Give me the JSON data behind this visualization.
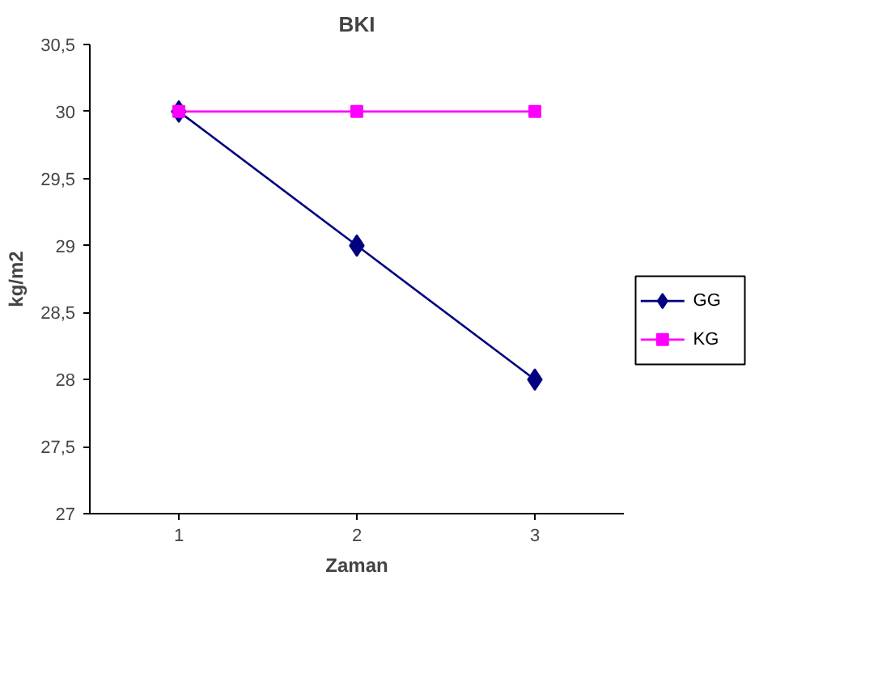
{
  "chart_data": {
    "type": "line",
    "title": "BKI",
    "xlabel": "Zaman",
    "ylabel": "kg/m2",
    "categories": [
      "1",
      "2",
      "3"
    ],
    "ylim": [
      27,
      30.5
    ],
    "yticks": [
      27,
      {
        "value": 27.5,
        "label": "27,5"
      },
      28,
      {
        "value": 28.5,
        "label": "28,5"
      },
      29,
      {
        "value": 29.5,
        "label": "29,5"
      },
      30,
      {
        "value": 30.5,
        "label": "30,5"
      }
    ],
    "series": [
      {
        "name": "GG",
        "color": "#000080",
        "marker": "diamond",
        "values": [
          30,
          29,
          28
        ]
      },
      {
        "name": "KG",
        "color": "#ff00ff",
        "marker": "square",
        "values": [
          30,
          30,
          30
        ]
      }
    ],
    "legend": "right",
    "line_style": "solid"
  }
}
